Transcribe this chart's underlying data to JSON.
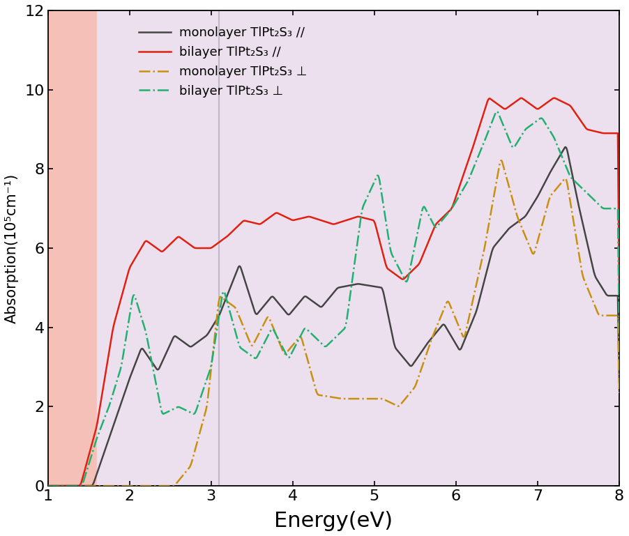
{
  "title": "",
  "xlabel": "Energy(eV)",
  "ylabel": "Absorption(10⁵cm⁻¹)",
  "xlim": [
    1,
    8
  ],
  "ylim": [
    0,
    12
  ],
  "xticks": [
    1,
    2,
    3,
    4,
    5,
    6,
    7,
    8
  ],
  "yticks": [
    0,
    2,
    4,
    6,
    8,
    10,
    12
  ],
  "vline1_x": 1.6,
  "vline2_x": 3.1,
  "colors": {
    "mono_parallel": "#444444",
    "bi_parallel": "#e02010",
    "mono_perp": "#c89010",
    "bi_perp": "#22b070"
  },
  "legend_labels": [
    "monolayer TlPt₂S₃ ∕∕",
    "bilayer TlPt₂S₃ ∕∕",
    "monolayer TlPt₂S₃ ⊥",
    "bilayer TlPt₂S₃ ⊥"
  ],
  "xlabel_fontsize": 22,
  "ylabel_fontsize": 15,
  "tick_fontsize": 16,
  "legend_fontsize": 13,
  "bg_salmon_color": "#f5c0b8",
  "bg_lavender_color": "#ede0ee",
  "vline_color": "#c0b8c8",
  "bg_white_color": "#ffffff"
}
